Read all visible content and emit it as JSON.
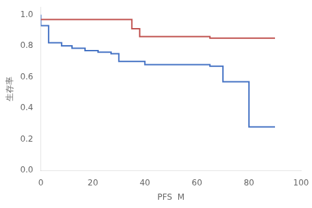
{
  "chart_data": {
    "type": "line",
    "xlabel": "PFS  M",
    "ylabel": "生存率",
    "xlim": [
      0,
      100
    ],
    "ylim": [
      0.0,
      1.05
    ],
    "xticks": [
      0,
      20,
      40,
      60,
      80,
      100
    ],
    "yticks": [
      {
        "value": 0.0,
        "label": "0.0"
      },
      0.2,
      0.4,
      0.6,
      0.8,
      {
        "value": 1.0,
        "label": "1.0"
      }
    ],
    "grid": false,
    "line_style": "steps",
    "series": [
      {
        "color": "#c0504d",
        "x": [
          0,
          35,
          35,
          38,
          38,
          65,
          65,
          80,
          80,
          90
        ],
        "values": [
          0.97,
          0.97,
          0.91,
          0.91,
          0.86,
          0.86,
          0.85,
          0.85,
          0.85,
          0.85
        ]
      },
      {
        "color": "#4472c4",
        "x": [
          0,
          0,
          3,
          3,
          8,
          8,
          12,
          12,
          17,
          17,
          22,
          22,
          27,
          27,
          30,
          30,
          40,
          40,
          65,
          65,
          70,
          70,
          80,
          80,
          90
        ],
        "values": [
          1.0,
          0.93,
          0.93,
          0.82,
          0.82,
          0.8,
          0.8,
          0.785,
          0.785,
          0.77,
          0.77,
          0.76,
          0.76,
          0.75,
          0.75,
          0.7,
          0.7,
          0.68,
          0.68,
          0.67,
          0.67,
          0.57,
          0.57,
          0.28,
          0.28
        ]
      }
    ]
  }
}
